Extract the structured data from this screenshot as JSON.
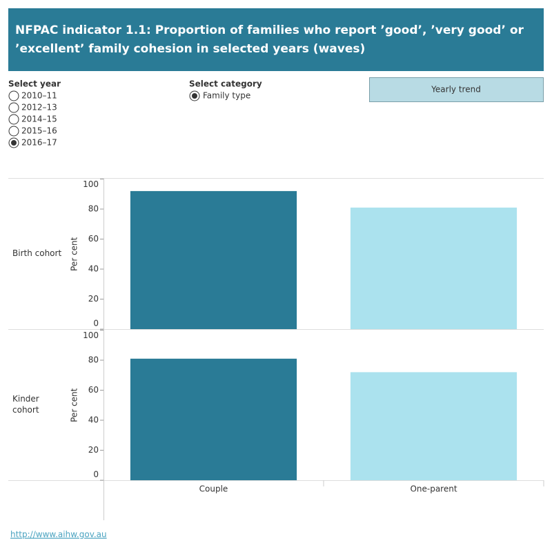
{
  "chart_data": {
    "type": "bar",
    "title": "NFPAC indicator 1.1: Proportion of families who report ’good’, ’very good’ or ’excellent’ family cohesion in selected years (waves)",
    "y_label": "Per cent",
    "categories": [
      "Couple",
      "One-parent"
    ],
    "colors": [
      "#2a7b96",
      "#abe2ee"
    ],
    "panels": [
      {
        "label": "Birth cohort",
        "values": [
          92,
          81
        ]
      },
      {
        "label": "Kinder cohort",
        "values": [
          81,
          72
        ]
      }
    ],
    "ylim": [
      0,
      100
    ],
    "yticks": [
      0,
      20,
      40,
      60,
      80,
      100
    ]
  },
  "controls": {
    "year": {
      "label": "Select year",
      "options": [
        "2010–11",
        "2012–13",
        "2014–15",
        "2015–16",
        "2016–17"
      ],
      "selected_index": 4
    },
    "category": {
      "label": "Select category",
      "options": [
        "Family type"
      ],
      "selected_index": 0
    },
    "button": "Yearly trend"
  },
  "footer": {
    "link": "http://www.aihw.gov.au"
  }
}
